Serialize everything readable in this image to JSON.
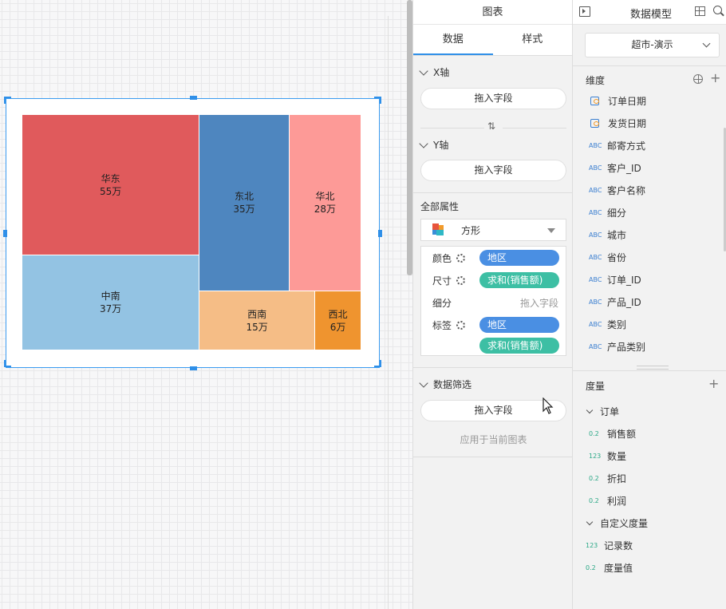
{
  "canvas": {},
  "chart_panel": {
    "title": "图表",
    "tabs": [
      {
        "label": "数据"
      },
      {
        "label": "样式"
      }
    ],
    "x_axis": {
      "label": "X轴",
      "drop": "拖入字段"
    },
    "swap_icon": "⇅",
    "y_axis": {
      "label": "Y轴",
      "drop": "拖入字段"
    },
    "all_props": {
      "label": "全部属性",
      "shape": "方形",
      "color_label": "颜色",
      "color_value": "地区",
      "size_label": "尺寸",
      "size_value": "求和(销售额)",
      "detail_label": "细分",
      "detail_value": "拖入字段",
      "tag_label": "标签",
      "tag_value_1": "地区",
      "tag_value_2": "求和(销售额)"
    },
    "filter": {
      "label": "数据筛选",
      "drop": "拖入字段",
      "apply": "应用于当前图表"
    }
  },
  "model_panel": {
    "title": "数据模型",
    "dataset": "超市-演示",
    "dimension_label": "维度",
    "dimensions": [
      {
        "type": "date",
        "name": "订单日期"
      },
      {
        "type": "date",
        "name": "发货日期"
      },
      {
        "type": "ABC",
        "name": "邮寄方式"
      },
      {
        "type": "ABC",
        "name": "客户_ID"
      },
      {
        "type": "ABC",
        "name": "客户名称"
      },
      {
        "type": "ABC",
        "name": "细分"
      },
      {
        "type": "ABC",
        "name": "城市"
      },
      {
        "type": "ABC",
        "name": "省份"
      },
      {
        "type": "ABC",
        "name": "订单_ID"
      },
      {
        "type": "ABC",
        "name": "产品_ID"
      },
      {
        "type": "ABC",
        "name": "类别"
      },
      {
        "type": "ABC",
        "name": "产品类别"
      }
    ],
    "measure_label": "度量",
    "measure_group_1": "订单",
    "measures_1": [
      {
        "type": "0.2",
        "name": "销售额"
      },
      {
        "type": "123",
        "name": "数量"
      },
      {
        "type": "0.2",
        "name": "折扣"
      },
      {
        "type": "0.2",
        "name": "利润"
      }
    ],
    "measure_group_2": "自定义度量",
    "measures_2": [
      {
        "type": "123",
        "name": "记录数"
      },
      {
        "type": "0.2",
        "name": "度量值"
      }
    ]
  },
  "chart_data": {
    "type": "treemap",
    "unit": "万",
    "items": [
      {
        "name": "华东",
        "value": 55,
        "label": "55万",
        "color": "#e05a5c"
      },
      {
        "name": "中南",
        "value": 37,
        "label": "37万",
        "color": "#93c3e3"
      },
      {
        "name": "东北",
        "value": 35,
        "label": "35万",
        "color": "#4e86bf"
      },
      {
        "name": "华北",
        "value": 28,
        "label": "28万",
        "color": "#fd9a97"
      },
      {
        "name": "西南",
        "value": 15,
        "label": "15万",
        "color": "#f5bd86"
      },
      {
        "name": "西北",
        "value": 6,
        "label": "6万",
        "color": "#ef942f"
      }
    ]
  }
}
